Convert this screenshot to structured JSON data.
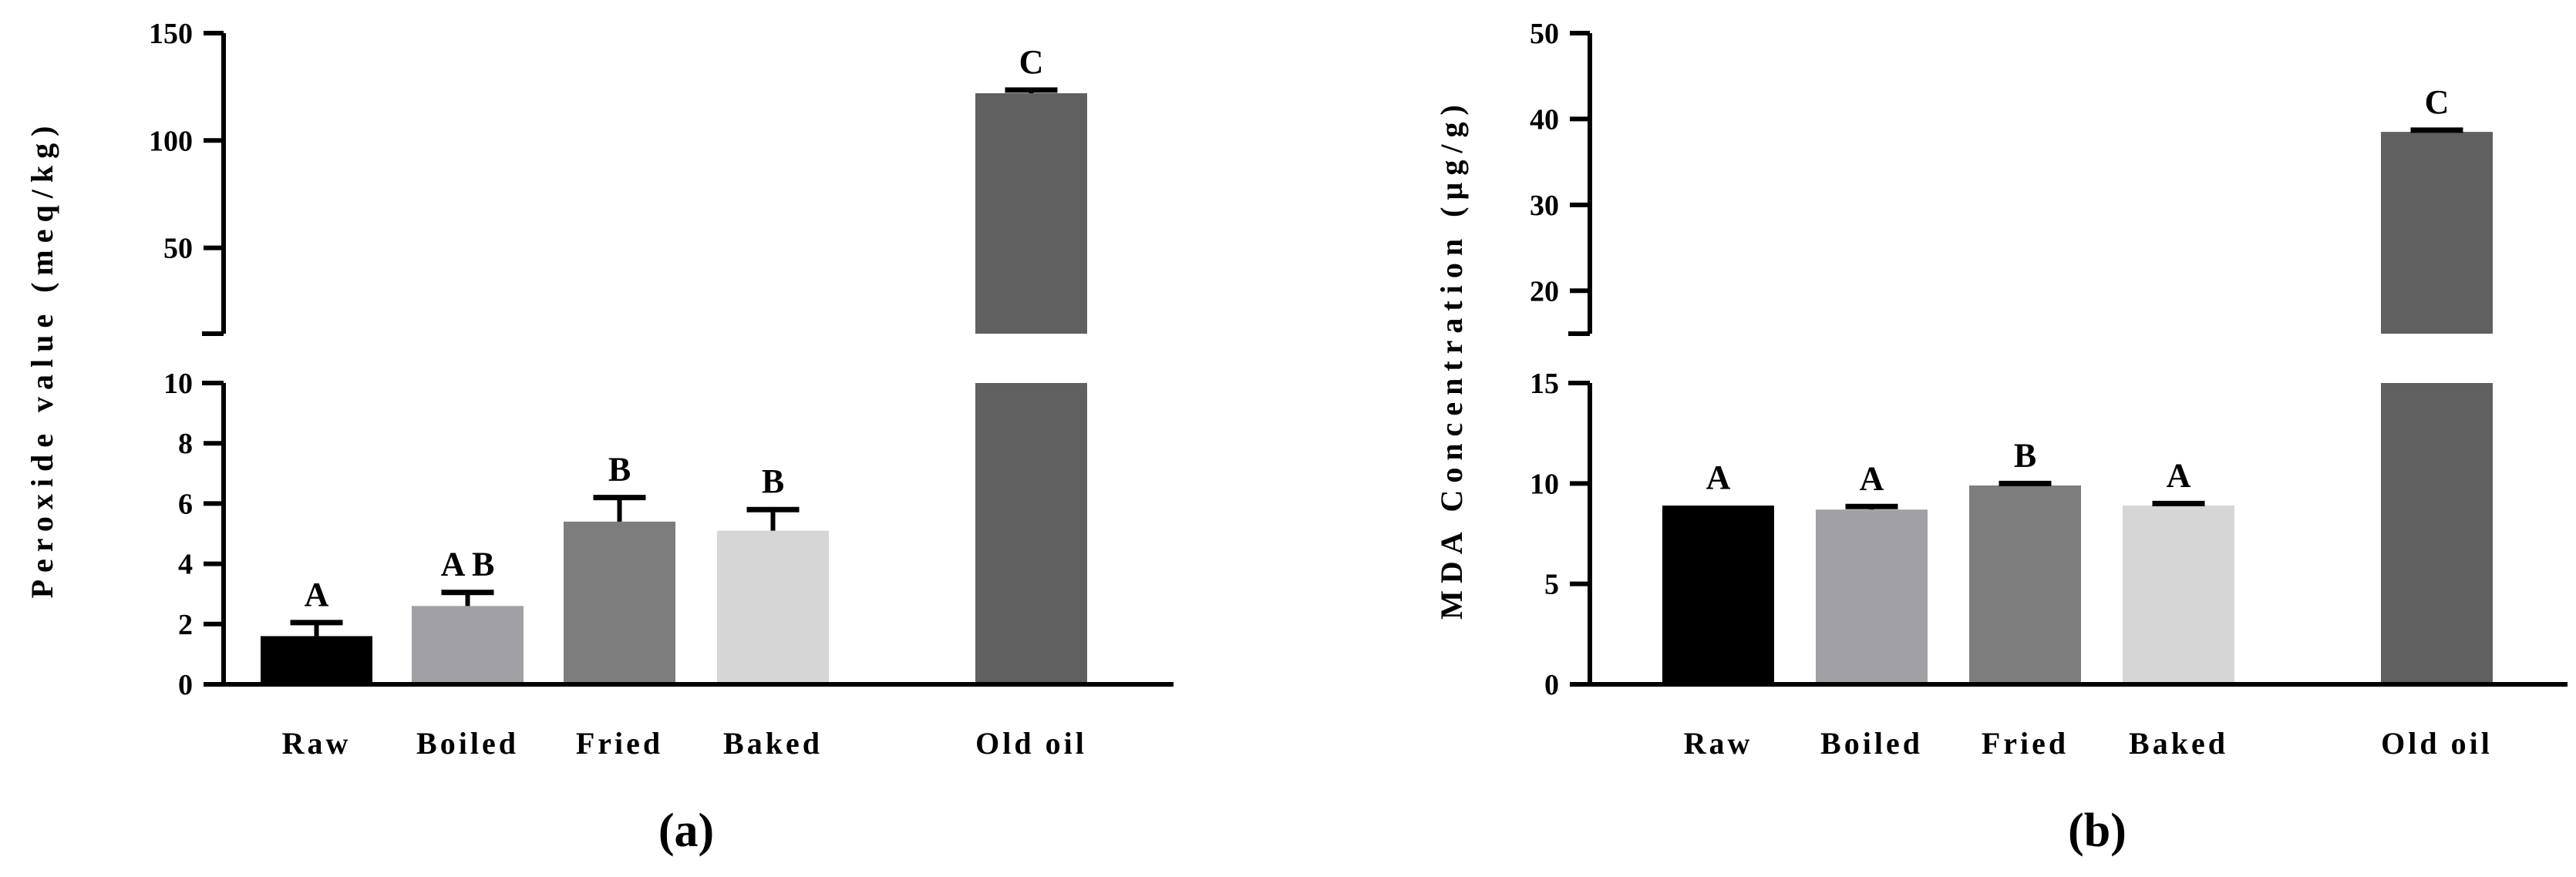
{
  "chart_data": [
    {
      "type": "bar",
      "panel_label": "(a)",
      "ylabel": "Peroxide value (meq/kg)",
      "categories": [
        "Raw",
        "Boiled",
        "Fried",
        "Baked",
        "Old oil"
      ],
      "values": [
        1.6,
        2.6,
        5.4,
        5.1,
        122
      ],
      "errors": [
        0.45,
        0.45,
        0.8,
        0.7,
        1.5
      ],
      "significance": [
        "A",
        "A B",
        "B",
        "B",
        "C"
      ],
      "colors": [
        "#000000",
        "#a0a0a5",
        "#7d7d7d",
        "#d6d6d6",
        "#606060"
      ],
      "y_axis_break": true,
      "ylim_lower": [
        0,
        10
      ],
      "ylim_upper": [
        10,
        150
      ],
      "yticks_lower": [
        "0",
        "2",
        "4",
        "6",
        "8",
        "10"
      ],
      "yticks_upper": [
        "50",
        "100",
        "150"
      ],
      "grid": false
    },
    {
      "type": "bar",
      "panel_label": "(b)",
      "ylabel": "MDA Concentration (µg/g)",
      "categories": [
        "Raw",
        "Boiled",
        "Fried",
        "Baked",
        "Old oil"
      ],
      "values": [
        8.9,
        8.7,
        9.9,
        8.9,
        38.5
      ],
      "errors": [
        0,
        0.15,
        0.1,
        0.1,
        0.2
      ],
      "significance": [
        "A",
        "A",
        "B",
        "A",
        "C"
      ],
      "colors": [
        "#000000",
        "#a0a0a5",
        "#7d7d7d",
        "#d6d6d6",
        "#606060"
      ],
      "y_axis_break": true,
      "ylim_lower": [
        0,
        15
      ],
      "ylim_upper": [
        15,
        50
      ],
      "yticks_lower": [
        "0",
        "5",
        "10",
        "15"
      ],
      "yticks_upper": [
        "20",
        "30",
        "40",
        "50"
      ],
      "grid": false
    }
  ]
}
